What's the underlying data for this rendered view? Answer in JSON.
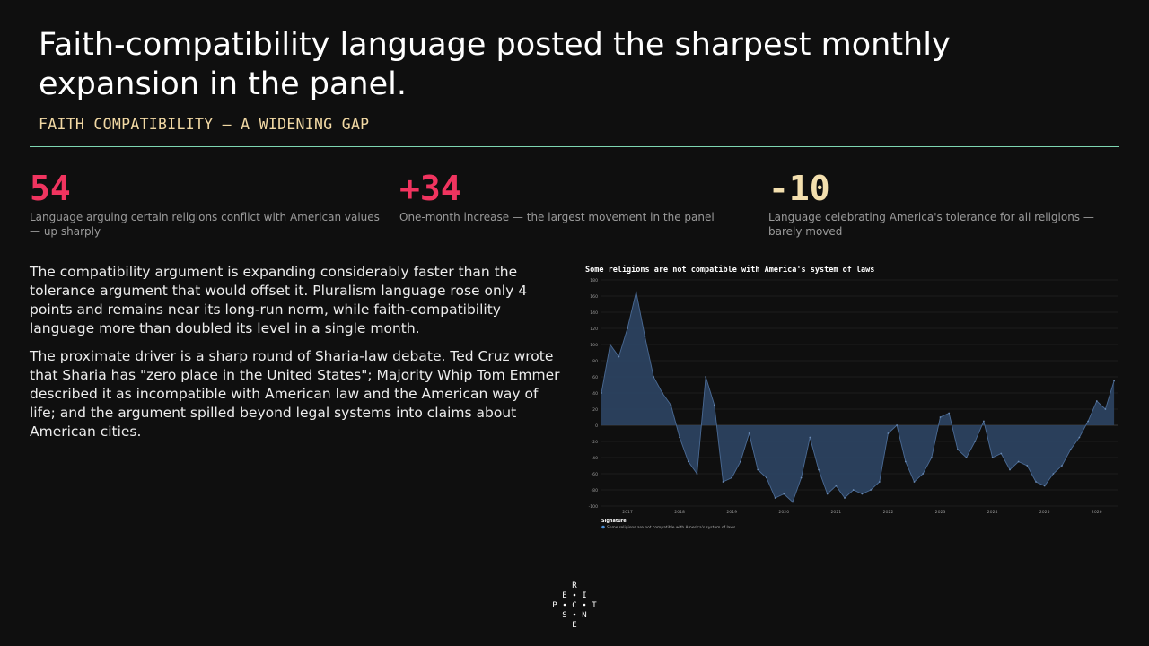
{
  "title": "Faith-compatibility language posted the sharpest monthly expansion in the panel.",
  "subtitle": "FAITH COMPATIBILITY — A WIDENING GAP",
  "colors": {
    "accent_red": "#f0345f",
    "accent_cream": "#f3dfae",
    "rule": "#7ed6b2",
    "series": "#4a6a94"
  },
  "stats": [
    {
      "value": "54",
      "desc": "Language arguing certain religions conflict with American values — up sharply",
      "color": "#f0345f"
    },
    {
      "value": "+34",
      "desc": "One-month increase — the largest movement in the panel",
      "color": "#f0345f"
    },
    {
      "value": "-10",
      "desc": "Language celebrating America's tolerance for all religions — barely moved",
      "color": "#f3dfae"
    }
  ],
  "body": {
    "p1": "The compatibility argument is expanding considerably faster than the tolerance argument that would offset it. Pluralism language rose only 4 points and remains near its long-run norm, while faith-compatibility language more than doubled its level in a single month.",
    "p2": "The proximate driver is a sharp round of Sharia-law debate. Ted Cruz wrote that Sharia has \"zero place in the United States\"; Majority Whip Tom Emmer described it as incompatible with American law and the American way of life; and the argument spilled beyond legal systems into claims about American cities."
  },
  "logo": {
    "letters": [
      "R",
      "E",
      "I",
      "P",
      "C",
      "T",
      "S",
      "N",
      "E"
    ]
  },
  "chart_data": {
    "type": "area",
    "title": "Some religions are not compatible with America's system of laws",
    "xlabel": "",
    "ylabel": "",
    "ylim": [
      -100,
      180
    ],
    "yticks": [
      -100,
      -80,
      -60,
      -40,
      -20,
      0,
      20,
      40,
      60,
      80,
      100,
      120,
      140,
      160,
      180
    ],
    "xticks": [
      "2017",
      "2018",
      "2019",
      "2020",
      "2021",
      "2022",
      "2023",
      "2024",
      "2025",
      "2026"
    ],
    "x": [
      "2016-07",
      "2016-09",
      "2016-11",
      "2017-01",
      "2017-03",
      "2017-05",
      "2017-07",
      "2017-09",
      "2017-11",
      "2018-01",
      "2018-03",
      "2018-05",
      "2018-07",
      "2018-09",
      "2018-11",
      "2019-01",
      "2019-03",
      "2019-05",
      "2019-07",
      "2019-09",
      "2019-11",
      "2020-01",
      "2020-03",
      "2020-05",
      "2020-07",
      "2020-09",
      "2020-11",
      "2021-01",
      "2021-03",
      "2021-05",
      "2021-07",
      "2021-09",
      "2021-11",
      "2022-01",
      "2022-03",
      "2022-05",
      "2022-07",
      "2022-09",
      "2022-11",
      "2023-01",
      "2023-03",
      "2023-05",
      "2023-07",
      "2023-09",
      "2023-11",
      "2024-01",
      "2024-03",
      "2024-05",
      "2024-07",
      "2024-09",
      "2024-11",
      "2025-01",
      "2025-03",
      "2025-05",
      "2025-07",
      "2025-09",
      "2025-11",
      "2026-01",
      "2026-03",
      "2026-05"
    ],
    "grid": true,
    "legend_title": "Signature",
    "legend_position": "bottom-left",
    "series": [
      {
        "name": "Some religions are not compatible with America's system of laws",
        "values": [
          40,
          100,
          85,
          120,
          165,
          110,
          60,
          40,
          25,
          -15,
          -45,
          -60,
          60,
          25,
          -70,
          -65,
          -45,
          -10,
          -55,
          -65,
          -90,
          -85,
          -95,
          -65,
          -15,
          -55,
          -85,
          -75,
          -90,
          -80,
          -85,
          -80,
          -70,
          -10,
          0,
          -45,
          -70,
          -60,
          -40,
          10,
          15,
          -30,
          -40,
          -20,
          5,
          -40,
          -35,
          -55,
          -45,
          -50,
          -70,
          -75,
          -60,
          -50,
          -30,
          -15,
          5,
          30,
          20,
          55
        ]
      }
    ]
  }
}
